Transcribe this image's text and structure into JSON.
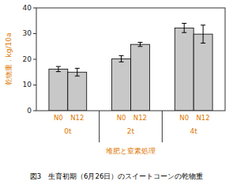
{
  "chart_data": {
    "type": "bar",
    "title": "図3　生育初期（6月26日）のスイートコーンの乾物重",
    "x_label": "堆肥と窒素処理",
    "y_label": "乾物重．kg/10a",
    "categories": [
      "0t",
      "2t",
      "4t"
    ],
    "series": [
      {
        "name": "N0",
        "color": "#c8c8c8",
        "values": [
          16.2,
          20.2,
          32.2
        ],
        "errors": [
          1.0,
          1.2,
          1.8
        ]
      },
      {
        "name": "N12",
        "color": "#c8c8c8",
        "values": [
          15.0,
          25.8,
          29.8
        ],
        "errors": [
          1.5,
          0.8,
          3.5
        ]
      }
    ],
    "ylim": [
      0,
      40
    ],
    "yticks": [
      0,
      10,
      20,
      30,
      40
    ],
    "grid": false
  }
}
